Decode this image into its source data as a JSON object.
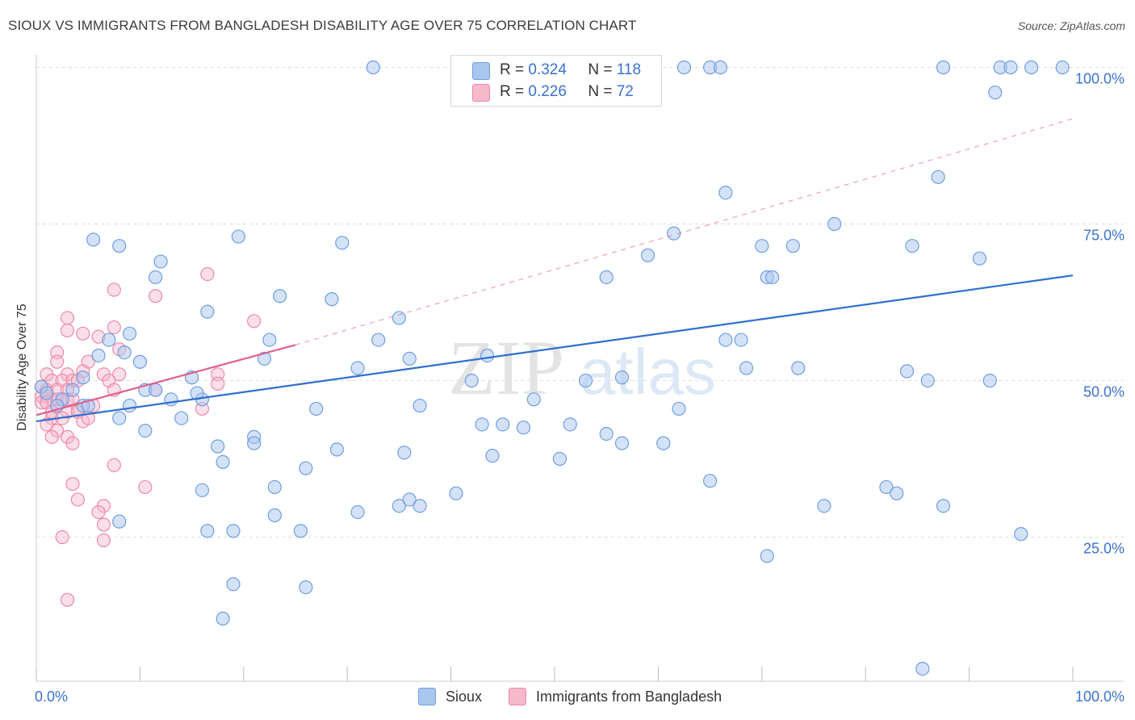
{
  "title": "SIOUX VS IMMIGRANTS FROM BANGLADESH DISABILITY AGE OVER 75 CORRELATION CHART",
  "source": "Source: ZipAtlas.com",
  "watermark": {
    "zip": "ZIP",
    "atlas": "atlas"
  },
  "legend": {
    "sioux": {
      "r_label": "R =",
      "r_value": "0.324",
      "n_label": "N =",
      "n_value": "118"
    },
    "bangladesh": {
      "r_label": "R =",
      "r_value": "0.226",
      "n_label": "N =",
      "n_value": "72"
    }
  },
  "bottom_legend": {
    "sioux": "Sioux",
    "bangladesh": "Immigrants from Bangladesh"
  },
  "colors": {
    "sioux_fill": "#a9c6ef",
    "sioux_stroke": "#6f9ee0",
    "sioux_line": "#2f6fd0",
    "bang_fill": "#f6b8cb",
    "bang_stroke": "#ec8aa8",
    "bang_line": "#e0608c",
    "tick_label": "#3a72d0",
    "grid": "#dddddd"
  },
  "chart_data": {
    "type": "scatter",
    "title": "SIOUX VS IMMIGRANTS FROM BANGLADESH DISABILITY AGE OVER 75 CORRELATION CHART",
    "xlabel": "",
    "ylabel": "Disability Age Over 75",
    "xlim": [
      0,
      100
    ],
    "ylim": [
      2,
      102
    ],
    "x_tick_labels": [
      "0.0%",
      "100.0%"
    ],
    "y_ticks": [
      25,
      50,
      75,
      100
    ],
    "y_tick_labels": [
      "25.0%",
      "50.0%",
      "75.0%",
      "100.0%"
    ],
    "grid": true,
    "series": [
      {
        "name": "Sioux",
        "R": 0.324,
        "N": 118,
        "trend": {
          "x": [
            0,
            100
          ],
          "y": [
            43.5,
            66.8
          ],
          "style": "solid"
        },
        "points": [
          [
            32.5,
            100
          ],
          [
            45,
            100
          ],
          [
            62.5,
            100
          ],
          [
            65,
            100
          ],
          [
            66,
            100
          ],
          [
            87.5,
            100
          ],
          [
            93,
            100
          ],
          [
            94,
            100
          ],
          [
            96,
            100
          ],
          [
            99,
            100
          ],
          [
            92.5,
            96
          ],
          [
            87,
            82.5
          ],
          [
            66.5,
            80
          ],
          [
            77,
            75
          ],
          [
            5.5,
            72.5
          ],
          [
            8,
            71.5
          ],
          [
            19.5,
            73
          ],
          [
            29.5,
            72
          ],
          [
            61.5,
            73.5
          ],
          [
            70,
            71.5
          ],
          [
            73,
            71.5
          ],
          [
            84.5,
            71.5
          ],
          [
            91,
            69.5
          ],
          [
            59,
            70
          ],
          [
            12,
            69
          ],
          [
            11.5,
            66.5
          ],
          [
            55,
            66.5
          ],
          [
            70.5,
            66.5
          ],
          [
            71,
            66.5
          ],
          [
            23.5,
            63.5
          ],
          [
            28.5,
            63
          ],
          [
            16.5,
            61
          ],
          [
            35,
            60
          ],
          [
            9,
            57.5
          ],
          [
            7,
            56.5
          ],
          [
            22.5,
            56.5
          ],
          [
            33,
            56.5
          ],
          [
            66.5,
            56.5
          ],
          [
            68,
            56.5
          ],
          [
            6,
            54
          ],
          [
            8.5,
            54.5
          ],
          [
            10,
            53
          ],
          [
            22,
            53.5
          ],
          [
            36,
            53.5
          ],
          [
            43.5,
            54
          ],
          [
            56.5,
            50.5
          ],
          [
            68.5,
            52
          ],
          [
            73.5,
            52
          ],
          [
            84,
            51.5
          ],
          [
            86,
            50
          ],
          [
            92,
            50
          ],
          [
            4.5,
            50.5
          ],
          [
            15,
            50.5
          ],
          [
            31,
            52
          ],
          [
            42,
            50
          ],
          [
            53,
            50
          ],
          [
            3.5,
            48.5
          ],
          [
            10.5,
            48.5
          ],
          [
            11.5,
            48.5
          ],
          [
            13,
            47
          ],
          [
            16,
            47
          ],
          [
            15.5,
            48
          ],
          [
            0.5,
            49
          ],
          [
            1,
            48
          ],
          [
            2.5,
            47
          ],
          [
            2,
            46
          ],
          [
            4.5,
            46
          ],
          [
            9,
            46
          ],
          [
            27,
            45.5
          ],
          [
            37,
            46
          ],
          [
            48,
            47
          ],
          [
            62,
            45.5
          ],
          [
            5,
            46
          ],
          [
            8,
            44
          ],
          [
            14,
            44
          ],
          [
            10.5,
            42
          ],
          [
            21,
            41
          ],
          [
            43,
            43
          ],
          [
            45,
            43
          ],
          [
            47,
            42.5
          ],
          [
            51.5,
            43
          ],
          [
            55,
            41.5
          ],
          [
            17.5,
            39.5
          ],
          [
            21,
            40
          ],
          [
            29,
            39
          ],
          [
            35.5,
            38.5
          ],
          [
            44,
            38
          ],
          [
            50.5,
            37.5
          ],
          [
            56.5,
            40
          ],
          [
            60.5,
            40
          ],
          [
            18,
            37
          ],
          [
            26,
            36
          ],
          [
            16,
            32.5
          ],
          [
            23,
            33
          ],
          [
            65,
            34
          ],
          [
            82,
            33
          ],
          [
            83,
            32
          ],
          [
            8,
            27.5
          ],
          [
            23,
            28.5
          ],
          [
            31,
            29
          ],
          [
            35,
            30
          ],
          [
            36,
            31
          ],
          [
            37,
            30
          ],
          [
            40.5,
            32
          ],
          [
            76,
            30
          ],
          [
            87.5,
            30
          ],
          [
            16.5,
            26
          ],
          [
            19,
            26
          ],
          [
            25.5,
            26
          ],
          [
            95,
            25.5
          ],
          [
            70.5,
            22
          ],
          [
            19,
            17.5
          ],
          [
            26,
            17
          ],
          [
            18,
            12
          ],
          [
            85.5,
            4
          ]
        ]
      },
      {
        "name": "Immigrants from Bangladesh",
        "R": 0.226,
        "N": 72,
        "trend": {
          "x": [
            0,
            25
          ],
          "y": [
            44.5,
            55.7
          ],
          "style": "solid",
          "extended": {
            "x": [
              25,
              100
            ],
            "y": [
              55.7,
              91.8
            ],
            "style": "dashed"
          }
        },
        "points": [
          [
            16.5,
            67
          ],
          [
            7.5,
            64.5
          ],
          [
            11.5,
            63.5
          ],
          [
            3,
            60
          ],
          [
            21,
            59.5
          ],
          [
            7.5,
            58.5
          ],
          [
            3,
            58
          ],
          [
            4.5,
            57.5
          ],
          [
            6,
            57
          ],
          [
            8,
            55
          ],
          [
            2,
            54.5
          ],
          [
            2,
            53
          ],
          [
            5,
            53
          ],
          [
            3,
            51
          ],
          [
            4.5,
            51.5
          ],
          [
            6.5,
            51
          ],
          [
            8,
            51
          ],
          [
            17.5,
            51
          ],
          [
            1,
            51
          ],
          [
            1.5,
            50
          ],
          [
            2.5,
            50
          ],
          [
            3.5,
            50
          ],
          [
            4,
            50
          ],
          [
            7,
            50
          ],
          [
            17.5,
            49.5
          ],
          [
            0.5,
            49
          ],
          [
            1,
            48.5
          ],
          [
            2,
            48.5
          ],
          [
            3,
            48.5
          ],
          [
            7.5,
            48.5
          ],
          [
            11.5,
            48.5
          ],
          [
            0.5,
            47.5
          ],
          [
            1,
            47.5
          ],
          [
            1.5,
            47
          ],
          [
            2,
            47
          ],
          [
            2.5,
            47
          ],
          [
            3,
            47
          ],
          [
            3.5,
            47
          ],
          [
            0.5,
            46.5
          ],
          [
            1,
            46.5
          ],
          [
            2,
            46
          ],
          [
            4,
            45.5
          ],
          [
            5.5,
            46
          ],
          [
            1.5,
            45
          ],
          [
            3,
            45
          ],
          [
            4,
            45
          ],
          [
            16,
            45.5
          ],
          [
            1.5,
            44
          ],
          [
            2.5,
            44
          ],
          [
            4.5,
            43.5
          ],
          [
            5,
            44
          ],
          [
            1,
            43
          ],
          [
            2,
            42
          ],
          [
            3,
            41
          ],
          [
            1.5,
            41
          ],
          [
            3.5,
            40
          ],
          [
            7.5,
            36.5
          ],
          [
            3.5,
            33.5
          ],
          [
            10.5,
            33
          ],
          [
            4,
            31
          ],
          [
            6.5,
            30
          ],
          [
            6,
            29
          ],
          [
            6.5,
            27
          ],
          [
            2.5,
            25
          ],
          [
            6.5,
            24.5
          ],
          [
            3,
            15
          ]
        ]
      }
    ]
  }
}
